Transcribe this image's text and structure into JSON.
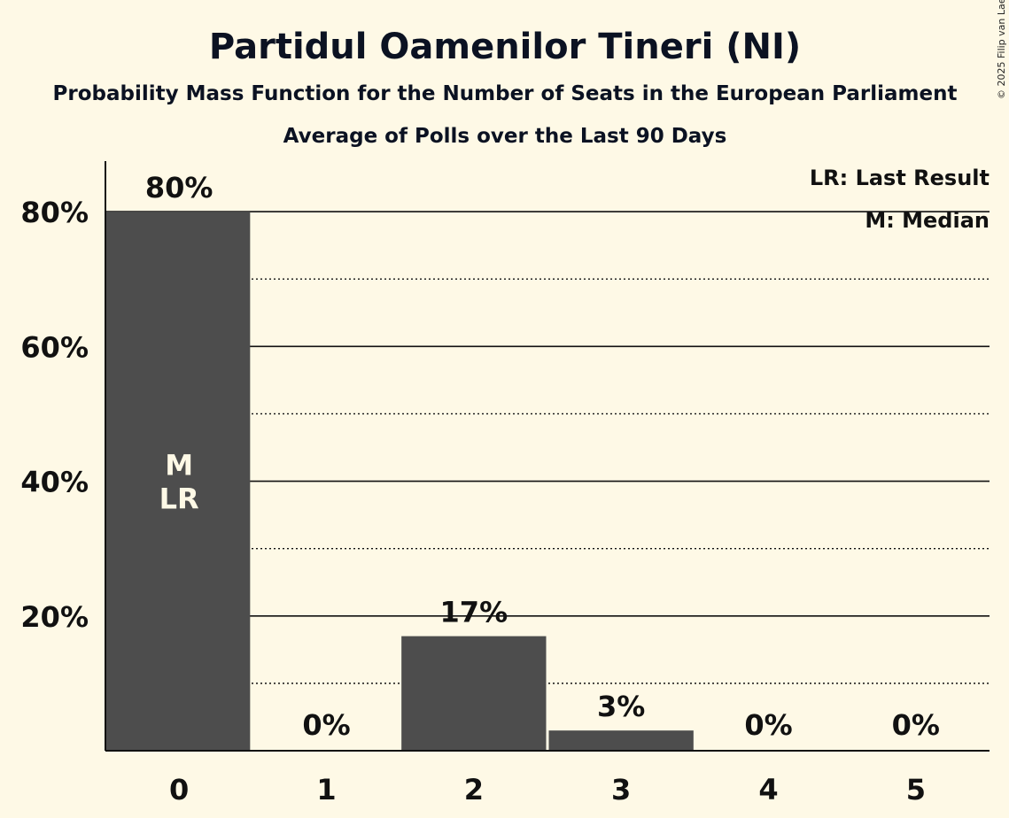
{
  "colors": {
    "background": "#FEF9E6",
    "bar": "#4D4D4D",
    "text": "#111111",
    "inner_text": "#FEF9E6"
  },
  "chart_data": {
    "type": "bar",
    "title": "Partidul Oamenilor Tineri (NI)",
    "subtitle": "Probability Mass Function for the Number of Seats in the European Parliament",
    "subtitle2": "Average of Polls over the Last 90 Days",
    "copyright": "© 2025 Filip van Laenen",
    "categories": [
      "0",
      "1",
      "2",
      "3",
      "4",
      "5"
    ],
    "values": [
      80,
      0,
      17,
      3,
      0,
      0
    ],
    "value_labels": [
      "80%",
      "0%",
      "17%",
      "3%",
      "0%",
      "0%"
    ],
    "inner_labels": [
      "M\nLR",
      "",
      "",
      "",
      "",
      ""
    ],
    "ylim": [
      0,
      87.5
    ],
    "yticks": [
      20,
      40,
      60,
      80
    ],
    "ytick_labels": [
      "20%",
      "40%",
      "60%",
      "80%"
    ],
    "minor_gridlines": [
      10,
      30,
      50,
      70
    ],
    "legend": [
      "LR: Last Result",
      "M: Median"
    ],
    "legend_position": "top-right",
    "xlabel": "",
    "ylabel": ""
  }
}
